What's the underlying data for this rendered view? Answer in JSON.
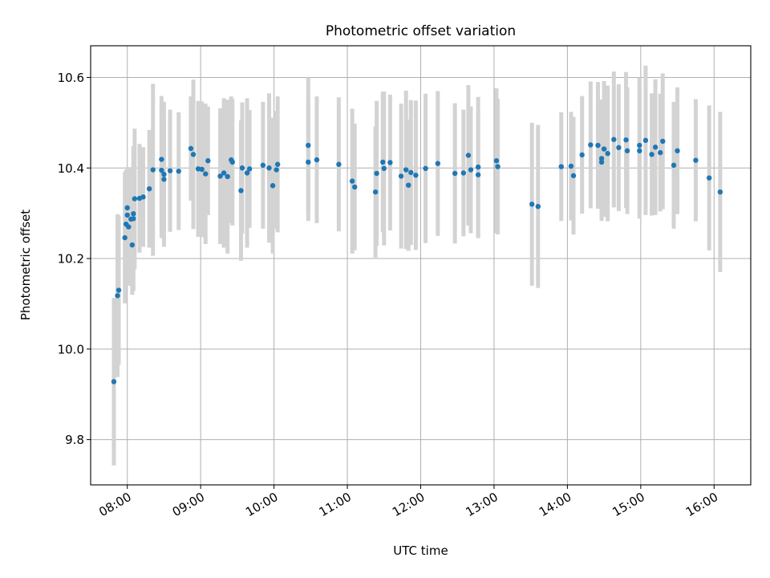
{
  "chart_data": {
    "type": "scatter",
    "title": "Photometric offset variation",
    "xlabel": "UTC time",
    "ylabel": "Photometric offset",
    "xlim": [
      "07:30",
      "16:30"
    ],
    "ylim": [
      9.7,
      10.67
    ],
    "grid": true,
    "x_ticks": [
      "08:00",
      "09:00",
      "10:00",
      "11:00",
      "12:00",
      "13:00",
      "14:00",
      "15:00",
      "16:00"
    ],
    "y_ticks": [
      9.8,
      10.0,
      10.2,
      10.4,
      10.6
    ],
    "y_tick_labels": [
      "9.8",
      "10.0",
      "10.2",
      "10.4",
      "10.6"
    ],
    "series": [
      {
        "marker_color": "#1f77b4",
        "errorbar_color": "#d3d3d3",
        "points": [
          [
            "07:49",
            9.928,
            0.185
          ],
          [
            "07:52",
            10.118,
            0.18
          ],
          [
            "07:53",
            10.13,
            0.165
          ],
          [
            "07:58",
            10.246,
            0.145
          ],
          [
            "07:59",
            10.276,
            0.12
          ],
          [
            "08:00",
            10.296,
            0.1
          ],
          [
            "08:00",
            10.312,
            0.09
          ],
          [
            "08:01",
            10.27,
            0.13
          ],
          [
            "08:03",
            10.287,
            0.115
          ],
          [
            "08:04",
            10.23,
            0.11
          ],
          [
            "08:05",
            10.299,
            0.14
          ],
          [
            "08:05",
            10.288,
            0.16
          ],
          [
            "08:06",
            10.332,
            0.155
          ],
          [
            "08:10",
            10.333,
            0.12
          ],
          [
            "08:13",
            10.336,
            0.11
          ],
          [
            "08:18",
            10.354,
            0.13
          ],
          [
            "08:21",
            10.396,
            0.19
          ],
          [
            "08:28",
            10.419,
            0.14
          ],
          [
            "08:28",
            10.395,
            0.15
          ],
          [
            "08:30",
            10.386,
            0.16
          ],
          [
            "08:30",
            10.375,
            0.135
          ],
          [
            "08:35",
            10.394,
            0.135
          ],
          [
            "08:42",
            10.393,
            0.13
          ],
          [
            "08:52",
            10.443,
            0.115
          ],
          [
            "08:54",
            10.43,
            0.165
          ],
          [
            "08:58",
            10.398,
            0.15
          ],
          [
            "09:01",
            10.397,
            0.15
          ],
          [
            "09:04",
            10.387,
            0.155
          ],
          [
            "09:06",
            10.416,
            0.12
          ],
          [
            "09:16",
            10.382,
            0.15
          ],
          [
            "09:19",
            10.389,
            0.165
          ],
          [
            "09:22",
            10.381,
            0.17
          ],
          [
            "09:25",
            10.418,
            0.14
          ],
          [
            "09:26",
            10.413,
            0.14
          ],
          [
            "09:33",
            10.35,
            0.155
          ],
          [
            "09:34",
            10.4,
            0.145
          ],
          [
            "09:38",
            10.389,
            0.165
          ],
          [
            "09:40",
            10.398,
            0.13
          ],
          [
            "09:51",
            10.406,
            0.14
          ],
          [
            "09:56",
            10.4,
            0.165
          ],
          [
            "09:59",
            10.361,
            0.15
          ],
          [
            "10:02",
            10.396,
            0.13
          ],
          [
            "10:03",
            10.408,
            0.15
          ],
          [
            "10:28",
            10.45,
            0.15
          ],
          [
            "10:28",
            10.413,
            0.13
          ],
          [
            "10:35",
            10.418,
            0.14
          ],
          [
            "10:53",
            10.408,
            0.148
          ],
          [
            "11:04",
            10.371,
            0.16
          ],
          [
            "11:06",
            10.358,
            0.14
          ],
          [
            "11:23",
            10.347,
            0.145
          ],
          [
            "11:24",
            10.388,
            0.16
          ],
          [
            "11:29",
            10.413,
            0.155
          ],
          [
            "11:30",
            10.399,
            0.17
          ],
          [
            "11:35",
            10.412,
            0.15
          ],
          [
            "11:44",
            10.382,
            0.16
          ],
          [
            "11:48",
            10.396,
            0.175
          ],
          [
            "11:50",
            10.362,
            0.145
          ],
          [
            "11:52",
            10.39,
            0.16
          ],
          [
            "11:56",
            10.384,
            0.165
          ],
          [
            "12:04",
            10.399,
            0.165
          ],
          [
            "12:14",
            10.41,
            0.16
          ],
          [
            "12:28",
            10.388,
            0.155
          ],
          [
            "12:35",
            10.389,
            0.14
          ],
          [
            "12:39",
            10.428,
            0.155
          ],
          [
            "12:41",
            10.396,
            0.14
          ],
          [
            "12:47",
            10.402,
            0.155
          ],
          [
            "12:47",
            10.385,
            0.14
          ],
          [
            "13:02",
            10.416,
            0.16
          ],
          [
            "13:03",
            10.403,
            0.15
          ],
          [
            "13:31",
            10.32,
            0.18
          ],
          [
            "13:36",
            10.315,
            0.18
          ],
          [
            "13:55",
            10.403,
            0.12
          ],
          [
            "14:03",
            10.404,
            0.12
          ],
          [
            "14:05",
            10.383,
            0.13
          ],
          [
            "14:12",
            10.429,
            0.13
          ],
          [
            "14:19",
            10.451,
            0.14
          ],
          [
            "14:25",
            10.45,
            0.14
          ],
          [
            "14:28",
            10.413,
            0.13
          ],
          [
            "14:28",
            10.421,
            0.13
          ],
          [
            "14:30",
            10.442,
            0.15
          ],
          [
            "14:33",
            10.432,
            0.15
          ],
          [
            "14:38",
            10.463,
            0.15
          ],
          [
            "14:42",
            10.445,
            0.14
          ],
          [
            "14:48",
            10.462,
            0.15
          ],
          [
            "14:49",
            10.438,
            0.14
          ],
          [
            "14:59",
            10.45,
            0.15
          ],
          [
            "14:59",
            10.438,
            0.15
          ],
          [
            "15:04",
            10.461,
            0.165
          ],
          [
            "15:09",
            10.43,
            0.135
          ],
          [
            "15:12",
            10.446,
            0.15
          ],
          [
            "15:16",
            10.434,
            0.13
          ],
          [
            "15:18",
            10.459,
            0.15
          ],
          [
            "15:27",
            10.406,
            0.14
          ],
          [
            "15:30",
            10.438,
            0.14
          ],
          [
            "15:45",
            10.417,
            0.135
          ],
          [
            "15:56",
            10.378,
            0.16
          ],
          [
            "16:05",
            10.347,
            0.177
          ]
        ]
      }
    ]
  }
}
